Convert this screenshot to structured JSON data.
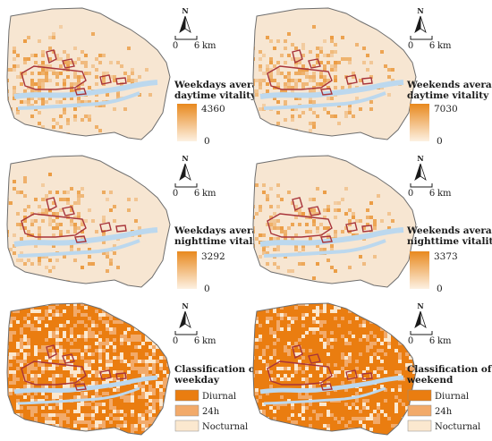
{
  "panels": [
    {
      "id": "weekday-day",
      "kind": "gradient",
      "title_line1": "Weekdays average",
      "title_line2": "daytime vitality",
      "legend_max": "4360",
      "legend_min": "0",
      "fill_density": 0.35
    },
    {
      "id": "weekend-day",
      "kind": "gradient",
      "title_line1": "Weekends average",
      "title_line2": "daytime vitality",
      "legend_max": "7030",
      "legend_min": "0",
      "fill_density": 0.33
    },
    {
      "id": "weekday-night",
      "kind": "gradient",
      "title_line1": "Weekdays average",
      "title_line2": "nighttime vitality",
      "legend_max": "3292",
      "legend_min": "0",
      "fill_density": 0.28
    },
    {
      "id": "weekend-night",
      "kind": "gradient",
      "title_line1": "Weekends average",
      "title_line2": "nighttime vitality",
      "legend_max": "3373",
      "legend_min": "0",
      "fill_density": 0.26
    },
    {
      "id": "weekday-class",
      "kind": "class",
      "title_line1": "Classification of",
      "title_line2": "weekday",
      "classes": [
        "Diurnal",
        "24h",
        "Nocturnal"
      ],
      "class_share": [
        0.55,
        0.28,
        0.17
      ]
    },
    {
      "id": "weekend-class",
      "kind": "class",
      "title_line1": "Classification of",
      "title_line2": "weekend",
      "classes": [
        "Diurnal",
        "24h",
        "Nocturnal"
      ],
      "class_share": [
        0.72,
        0.16,
        0.12
      ]
    }
  ],
  "north_label": "N",
  "scale_start": "0",
  "scale_end": "6",
  "scale_unit": "km",
  "colors": {
    "background_land": "#f7e6d2",
    "gradient_high": "#e8891e",
    "gradient_low": "#fdf1e2",
    "hotspot_outline": "#a8343a",
    "river": "#bcd8ee",
    "boundary": "#6e6e6e",
    "diurnal": "#ea7d10",
    "h24": "#f2aa6a",
    "nocturnal": "#fbe8cf"
  }
}
